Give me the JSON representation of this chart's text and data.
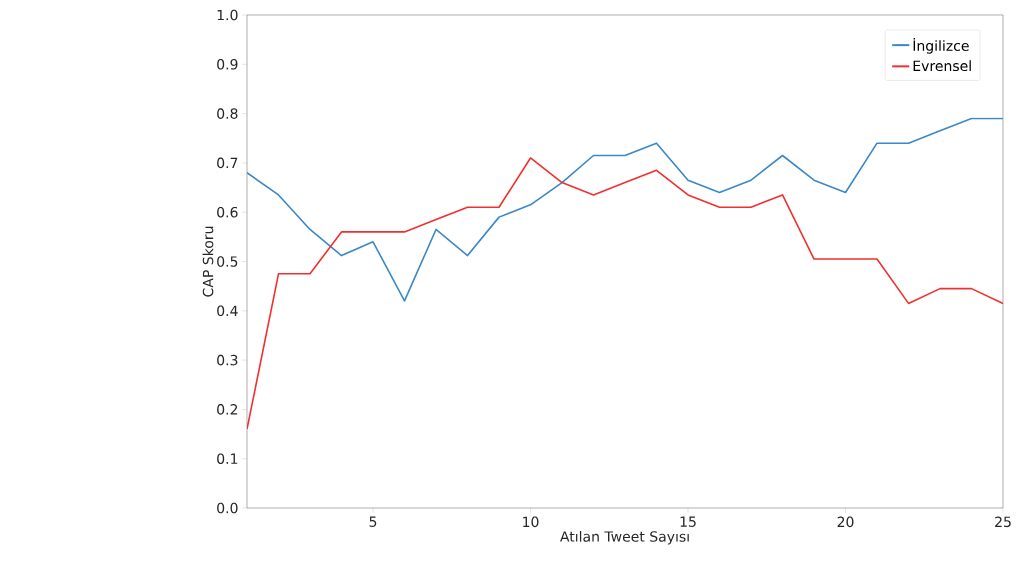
{
  "chart_data": {
    "type": "line",
    "xlabel": "Atılan Tweet Sayısı",
    "ylabel": "CAP Skoru",
    "x": [
      1,
      2,
      3,
      4,
      5,
      6,
      7,
      8,
      9,
      10,
      11,
      12,
      13,
      14,
      15,
      16,
      17,
      18,
      19,
      20,
      21,
      22,
      23,
      24,
      25
    ],
    "series": [
      {
        "name": "İngilizce",
        "color": "#3a88c8",
        "values": [
          0.68,
          0.635,
          0.565,
          0.512,
          0.54,
          0.42,
          0.565,
          0.512,
          0.59,
          0.615,
          0.66,
          0.715,
          0.715,
          0.74,
          0.665,
          0.64,
          0.665,
          0.715,
          0.665,
          0.64,
          0.74,
          0.74,
          0.765,
          0.79,
          0.79
        ]
      },
      {
        "name": "Evrensel",
        "color": "#f03030",
        "values": [
          0.16,
          0.475,
          0.475,
          0.56,
          0.56,
          0.56,
          0.585,
          0.61,
          0.61,
          0.71,
          0.66,
          0.635,
          0.66,
          0.685,
          0.635,
          0.61,
          0.61,
          0.635,
          0.505,
          0.505,
          0.505,
          0.415,
          0.445,
          0.445,
          0.415
        ]
      }
    ],
    "xlim": [
      1,
      25
    ],
    "ylim": [
      0,
      1
    ],
    "xticks": [
      5,
      10,
      15,
      20,
      25
    ],
    "yticks": [
      {
        "value": 0,
        "label": "0.0"
      },
      {
        "value": 0.1,
        "label": "0.1"
      },
      {
        "value": 0.2,
        "label": "0.2"
      },
      {
        "value": 0.3,
        "label": "0.3"
      },
      {
        "value": 0.4,
        "label": "0.4"
      },
      {
        "value": 0.5,
        "label": "0.5"
      },
      {
        "value": 0.6,
        "label": "0.6"
      },
      {
        "value": 0.7,
        "label": "0.7"
      },
      {
        "value": 0.8,
        "label": "0.8"
      },
      {
        "value": 0.9,
        "label": "0.9"
      },
      {
        "value": 1.0,
        "label": "1.0"
      }
    ],
    "legend": "top right",
    "grid": false,
    "marker": "none",
    "line_style": "solid"
  }
}
